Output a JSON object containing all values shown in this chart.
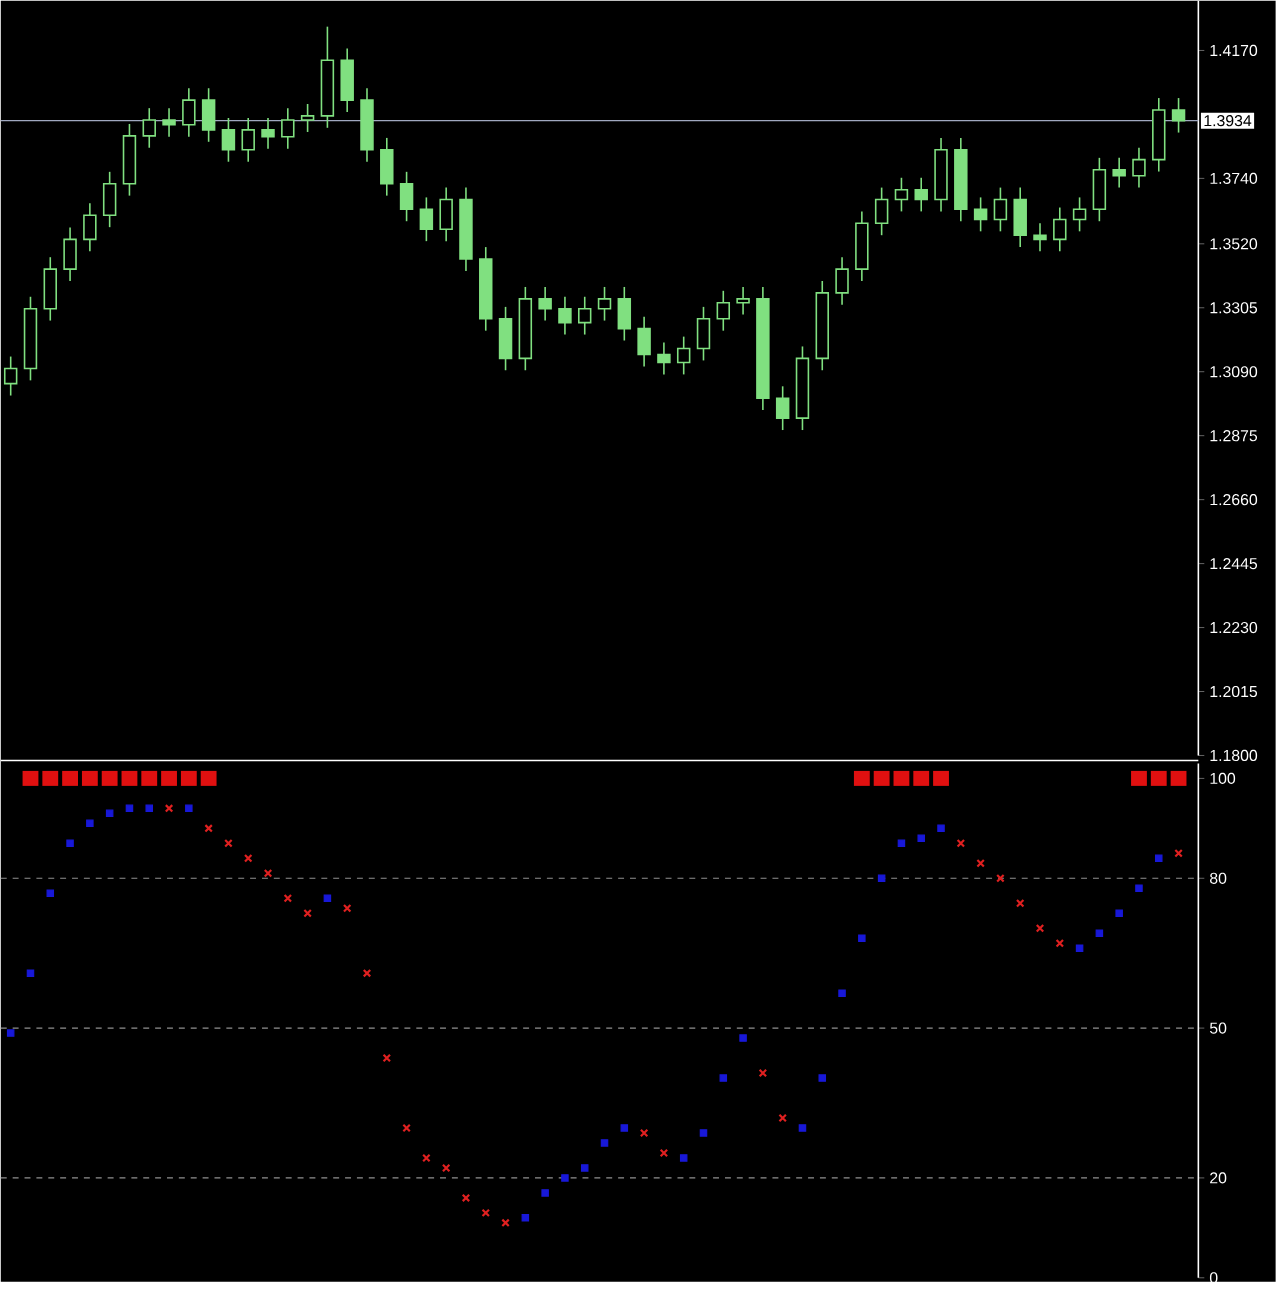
{
  "chart_data": [
    {
      "type": "candlestick",
      "color": "#80e080",
      "tick_labels": "y",
      "categories": [
        null,
        null,
        null,
        null,
        null,
        null,
        null,
        null,
        null,
        null,
        null,
        null,
        null,
        null,
        null,
        null,
        null,
        null,
        null,
        null,
        null,
        null,
        null,
        null,
        null,
        null,
        null,
        null,
        null,
        null,
        null,
        null,
        null,
        null,
        null,
        null,
        null,
        null,
        null,
        null,
        null,
        null,
        null,
        null,
        null,
        null,
        null,
        null,
        null,
        null,
        null,
        null,
        null,
        null,
        null,
        null,
        null,
        null,
        null,
        null
      ],
      "ohlc": [
        [
          1.305,
          1.3141,
          1.301,
          1.3101
        ],
        [
          1.3101,
          1.3342,
          1.3061,
          1.3302
        ],
        [
          1.3302,
          1.3475,
          1.3262,
          1.3435
        ],
        [
          1.3435,
          1.3575,
          1.3395,
          1.3535
        ],
        [
          1.3535,
          1.3656,
          1.3495,
          1.3616
        ],
        [
          1.3616,
          1.3762,
          1.3576,
          1.3722
        ],
        [
          1.3722,
          1.3923,
          1.3682,
          1.3883
        ],
        [
          1.3883,
          1.3976,
          1.3843,
          1.3936
        ],
        [
          1.3936,
          1.3976,
          1.388,
          1.392
        ],
        [
          1.392,
          1.4043,
          1.388,
          1.4003
        ],
        [
          1.4003,
          1.4043,
          1.3863,
          1.3903
        ],
        [
          1.3903,
          1.3943,
          1.3796,
          1.3836
        ],
        [
          1.3836,
          1.3943,
          1.3796,
          1.3903
        ],
        [
          1.3903,
          1.3943,
          1.384,
          1.388
        ],
        [
          1.388,
          1.3976,
          1.384,
          1.3936
        ],
        [
          1.3936,
          1.399,
          1.3896,
          1.395
        ],
        [
          1.395,
          1.425,
          1.391,
          1.4137
        ],
        [
          1.4137,
          1.4177,
          1.3963,
          1.4003
        ],
        [
          1.4003,
          1.4043,
          1.3796,
          1.3836
        ],
        [
          1.3836,
          1.3876,
          1.3682,
          1.3722
        ],
        [
          1.3722,
          1.3762,
          1.3596,
          1.3636
        ],
        [
          1.3636,
          1.3676,
          1.3529,
          1.3569
        ],
        [
          1.3569,
          1.3709,
          1.3529,
          1.3669
        ],
        [
          1.3669,
          1.3709,
          1.3429,
          1.3469
        ],
        [
          1.3469,
          1.3509,
          1.3228,
          1.3268
        ],
        [
          1.3268,
          1.3308,
          1.3095,
          1.3135
        ],
        [
          1.3135,
          1.3375,
          1.3095,
          1.3335
        ],
        [
          1.3335,
          1.3375,
          1.3262,
          1.3302
        ],
        [
          1.3302,
          1.3342,
          1.3215,
          1.3255
        ],
        [
          1.3255,
          1.3342,
          1.3215,
          1.3302
        ],
        [
          1.3302,
          1.3375,
          1.3262,
          1.3335
        ],
        [
          1.3335,
          1.3375,
          1.3195,
          1.3235
        ],
        [
          1.3235,
          1.3275,
          1.3108,
          1.3148
        ],
        [
          1.3148,
          1.3188,
          1.3081,
          1.3121
        ],
        [
          1.3121,
          1.3208,
          1.3081,
          1.3168
        ],
        [
          1.3168,
          1.3308,
          1.3128,
          1.3268
        ],
        [
          1.3268,
          1.3362,
          1.3228,
          1.3322
        ],
        [
          1.3322,
          1.3375,
          1.3282,
          1.3335
        ],
        [
          1.3335,
          1.3375,
          1.2961,
          1.3001
        ],
        [
          1.3001,
          1.3041,
          1.2894,
          1.2934
        ],
        [
          1.2934,
          1.3175,
          1.2894,
          1.3135
        ],
        [
          1.3135,
          1.3395,
          1.3095,
          1.3355
        ],
        [
          1.3355,
          1.3475,
          1.3315,
          1.3435
        ],
        [
          1.3435,
          1.3629,
          1.3395,
          1.3589
        ],
        [
          1.3589,
          1.3709,
          1.3549,
          1.3669
        ],
        [
          1.3669,
          1.3742,
          1.3629,
          1.3702
        ],
        [
          1.3702,
          1.3742,
          1.3629,
          1.3669
        ],
        [
          1.3669,
          1.3876,
          1.3629,
          1.3836
        ],
        [
          1.3836,
          1.3876,
          1.3596,
          1.3636
        ],
        [
          1.3636,
          1.3676,
          1.3562,
          1.3602
        ],
        [
          1.3602,
          1.3709,
          1.3562,
          1.3669
        ],
        [
          1.3669,
          1.3709,
          1.3509,
          1.3549
        ],
        [
          1.3549,
          1.3589,
          1.3495,
          1.3535
        ],
        [
          1.3535,
          1.3642,
          1.3495,
          1.3602
        ],
        [
          1.3602,
          1.3676,
          1.3562,
          1.3636
        ],
        [
          1.3636,
          1.3809,
          1.3596,
          1.3769
        ],
        [
          1.3769,
          1.3809,
          1.3709,
          1.3749
        ],
        [
          1.3749,
          1.3843,
          1.3709,
          1.3803
        ],
        [
          1.3803,
          1.401,
          1.3763,
          1.397
        ],
        [
          1.397,
          1.401,
          1.3894,
          1.3934
        ]
      ],
      "ylim": [
        1.18,
        1.4337
      ],
      "yticks": [
        {
          "value": 1.18,
          "label": "1.1800"
        },
        {
          "value": 1.2015,
          "label": "1.2015"
        },
        {
          "value": 1.223,
          "label": "1.2230"
        },
        {
          "value": 1.2445,
          "label": "1.2445"
        },
        {
          "value": 1.266,
          "label": "1.2660"
        },
        {
          "value": 1.2875,
          "label": "1.2875"
        },
        {
          "value": 1.309,
          "label": "1.3090"
        },
        {
          "value": 1.3305,
          "label": "1.3305"
        },
        {
          "value": 1.352,
          "label": "1.3520"
        },
        {
          "value": 1.374,
          "label": "1.3740"
        },
        {
          "value": 1.417,
          "label": "1.4170"
        }
      ],
      "ref_lines": [
        {
          "axis": "y",
          "value": 1.3934,
          "label": "1.3934",
          "color": "#a0a8c0"
        }
      ]
    },
    {
      "type": "scatter",
      "tick_labels": "y",
      "categories": [
        null,
        null,
        null,
        null,
        null,
        null,
        null,
        null,
        null,
        null,
        null,
        null,
        null,
        null,
        null,
        null,
        null,
        null,
        null,
        null,
        null,
        null,
        null,
        null,
        null,
        null,
        null,
        null,
        null,
        null,
        null,
        null,
        null,
        null,
        null,
        null,
        null,
        null,
        null,
        null,
        null,
        null,
        null,
        null,
        null,
        null,
        null,
        null,
        null,
        null,
        null,
        null,
        null,
        null,
        null,
        null,
        null,
        null,
        null,
        null
      ],
      "series": [
        {
          "color": "#1818d8",
          "marker": "square",
          "values": [
            49,
            61,
            77,
            87,
            91,
            93,
            94,
            94,
            null,
            94,
            null,
            null,
            null,
            null,
            null,
            null,
            76,
            null,
            null,
            null,
            null,
            null,
            null,
            null,
            null,
            null,
            12,
            17,
            20,
            22,
            27,
            30,
            null,
            null,
            24,
            29,
            40,
            48,
            null,
            null,
            30,
            40,
            57,
            68,
            80,
            87,
            88,
            90,
            null,
            null,
            null,
            null,
            null,
            null,
            66,
            69,
            73,
            78,
            84,
            null
          ]
        },
        {
          "color": "#e02020",
          "marker": "cross",
          "values": [
            null,
            null,
            null,
            null,
            null,
            null,
            null,
            null,
            94,
            null,
            90,
            87,
            84,
            81,
            76,
            73,
            null,
            74,
            61,
            44,
            30,
            24,
            22,
            16,
            13,
            11,
            null,
            null,
            null,
            null,
            null,
            null,
            29,
            25,
            null,
            null,
            null,
            null,
            41,
            32,
            null,
            null,
            null,
            null,
            null,
            null,
            null,
            null,
            87,
            83,
            80,
            75,
            70,
            67,
            null,
            null,
            null,
            null,
            null,
            85
          ]
        },
        {
          "type": "bar",
          "color": "#e01010",
          "base": [
            null,
            98.5,
            98.5,
            98.5,
            98.5,
            98.5,
            98.5,
            98.5,
            98.5,
            98.5,
            98.5,
            null,
            null,
            null,
            null,
            null,
            null,
            null,
            null,
            null,
            null,
            null,
            null,
            null,
            null,
            null,
            null,
            null,
            null,
            null,
            null,
            null,
            null,
            null,
            null,
            null,
            null,
            null,
            null,
            null,
            null,
            null,
            null,
            98.5,
            98.5,
            98.5,
            98.5,
            98.5,
            null,
            null,
            null,
            null,
            null,
            null,
            null,
            null,
            null,
            98.5,
            98.5,
            98.5
          ],
          "values": [
            null,
            3,
            3,
            3,
            3,
            3,
            3,
            3,
            3,
            3,
            3,
            null,
            null,
            null,
            null,
            null,
            null,
            null,
            null,
            null,
            null,
            null,
            null,
            null,
            null,
            null,
            null,
            null,
            null,
            null,
            null,
            null,
            null,
            null,
            null,
            null,
            null,
            null,
            null,
            null,
            null,
            null,
            null,
            3,
            3,
            3,
            3,
            3,
            null,
            null,
            null,
            null,
            null,
            null,
            null,
            null,
            null,
            3,
            3,
            3
          ]
        }
      ],
      "ylim": [
        0,
        103
      ],
      "yticks": [
        0,
        20,
        50,
        80,
        100
      ],
      "ref_lines": [
        {
          "axis": "y",
          "value": 20,
          "color": "#909090",
          "line_style": "dashed"
        },
        {
          "axis": "y",
          "value": 50,
          "color": "#909090",
          "line_style": "dashed"
        },
        {
          "axis": "y",
          "value": 80,
          "color": "#909090",
          "line_style": "dashed"
        }
      ]
    }
  ]
}
